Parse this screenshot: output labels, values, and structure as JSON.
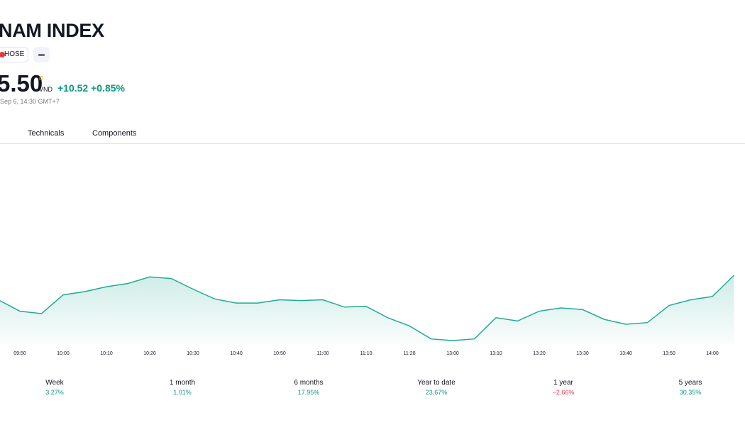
{
  "header": {
    "title": "NAM INDEX",
    "exchange": "HOSE",
    "price": "5.50",
    "currency_superscript": "D",
    "currency": "VND",
    "change": "+10.52",
    "change_percent": "+0.85%",
    "timestamp": "Sep 6, 14:30 GMT+7"
  },
  "tabs": [
    "Technicals",
    "Components"
  ],
  "chart_data": {
    "type": "line",
    "color": "#22ab94",
    "x": [
      "09:45",
      "09:50",
      "09:55",
      "10:00",
      "10:05",
      "10:10",
      "10:15",
      "10:20",
      "10:25",
      "10:30",
      "10:35",
      "10:40",
      "10:45",
      "10:50",
      "10:55",
      "11:00",
      "11:05",
      "11:10",
      "11:15",
      "11:20",
      "11:25",
      "13:00",
      "13:05",
      "13:10",
      "13:15",
      "13:20",
      "13:25",
      "13:30",
      "13:35",
      "13:40",
      "13:45",
      "13:50",
      "13:55",
      "14:00",
      "14:05"
    ],
    "values": [
      1260.55,
      1258.45,
      1258.0,
      1261.45,
      1262.05,
      1262.95,
      1263.55,
      1264.75,
      1264.45,
      1262.5,
      1260.7,
      1259.95,
      1259.95,
      1260.55,
      1260.4,
      1260.55,
      1259.2,
      1259.35,
      1257.25,
      1255.75,
      1253.35,
      1253.05,
      1253.35,
      1257.25,
      1256.65,
      1258.45,
      1259.05,
      1258.75,
      1256.95,
      1256.05,
      1256.35,
      1259.5,
      1260.55,
      1261.15,
      1265.05
    ],
    "xticks": [
      "09:50",
      "10:00",
      "10:10",
      "10:20",
      "10:30",
      "10:40",
      "10:50",
      "11:00",
      "11:10",
      "11:20",
      "13:00",
      "13:10",
      "13:20",
      "13:30",
      "13:40",
      "13:50",
      "14:00"
    ]
  },
  "performance": [
    {
      "label": "Week",
      "value": 3.27,
      "value_label": "3.27%"
    },
    {
      "label": "1 month",
      "value": 1.01,
      "value_label": "1.01%"
    },
    {
      "label": "6 months",
      "value": 17.95,
      "value_label": "17.95%"
    },
    {
      "label": "Year to date",
      "value": 23.67,
      "value_label": "23.67%"
    },
    {
      "label": "1 year",
      "value": -2.66,
      "value_label": "−2.66%"
    },
    {
      "label": "5 years",
      "value": 30.35,
      "value_label": "30.35%"
    }
  ]
}
